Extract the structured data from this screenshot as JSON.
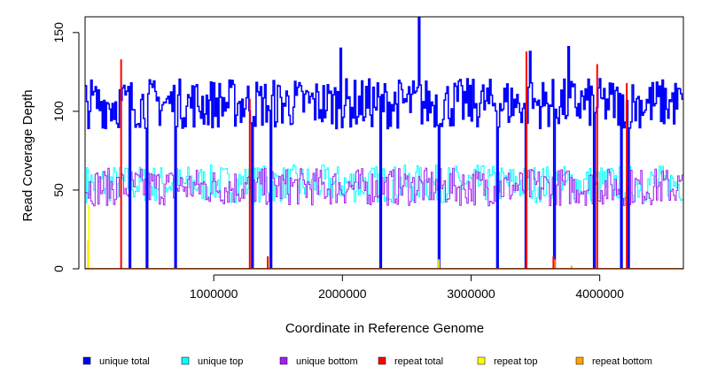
{
  "chart_data": {
    "type": "line",
    "title": "",
    "xlabel": "Coordinate in Reference Genome",
    "ylabel": "Read Coverage Depth",
    "xlim": [
      0,
      4650000
    ],
    "ylim": [
      0,
      160
    ],
    "x_ticks": [
      1000000,
      2000000,
      3000000,
      4000000
    ],
    "x_tick_labels": [
      "1000000",
      "2000000",
      "3000000",
      "4000000"
    ],
    "y_ticks": [
      0,
      50,
      100,
      150
    ],
    "y_tick_labels": [
      "0",
      "50",
      "100",
      "150"
    ],
    "grid": false,
    "legend_position": "bottom",
    "series": [
      {
        "name": "unique total",
        "color": "#0000ff",
        "baseline": 105,
        "spread": 16,
        "dips": [
          350000,
          480000,
          700000,
          1300000,
          1450000,
          2300000,
          2750000,
          3200000,
          3430000,
          3650000,
          3960000,
          4170000,
          4220000
        ],
        "dip_value": 0,
        "peaks": [
          [
            2600000,
            161
          ],
          [
            1990000,
            140
          ],
          [
            3460000,
            138
          ],
          [
            3760000,
            141
          ]
        ]
      },
      {
        "name": "unique top",
        "color": "#00ffff",
        "baseline": 54,
        "spread": 12
      },
      {
        "name": "unique bottom",
        "color": "#a020f0",
        "baseline": 52,
        "spread": 12
      },
      {
        "name": "repeat total",
        "color": "#ff0000",
        "spikes": [
          [
            280000,
            133
          ],
          [
            1280000,
            108
          ],
          [
            1420000,
            8
          ],
          [
            3430000,
            138
          ],
          [
            3640000,
            8
          ],
          [
            3980000,
            130
          ],
          [
            4210000,
            118
          ]
        ]
      },
      {
        "name": "repeat top",
        "color": "#ffff00",
        "spikes": [
          [
            30000,
            40
          ],
          [
            2750000,
            6
          ]
        ]
      },
      {
        "name": "repeat bottom",
        "color": "#ffa500",
        "spikes": [
          [
            25000,
            18
          ],
          [
            1420000,
            6
          ],
          [
            3650000,
            6
          ],
          [
            3780000,
            2
          ]
        ]
      }
    ]
  }
}
